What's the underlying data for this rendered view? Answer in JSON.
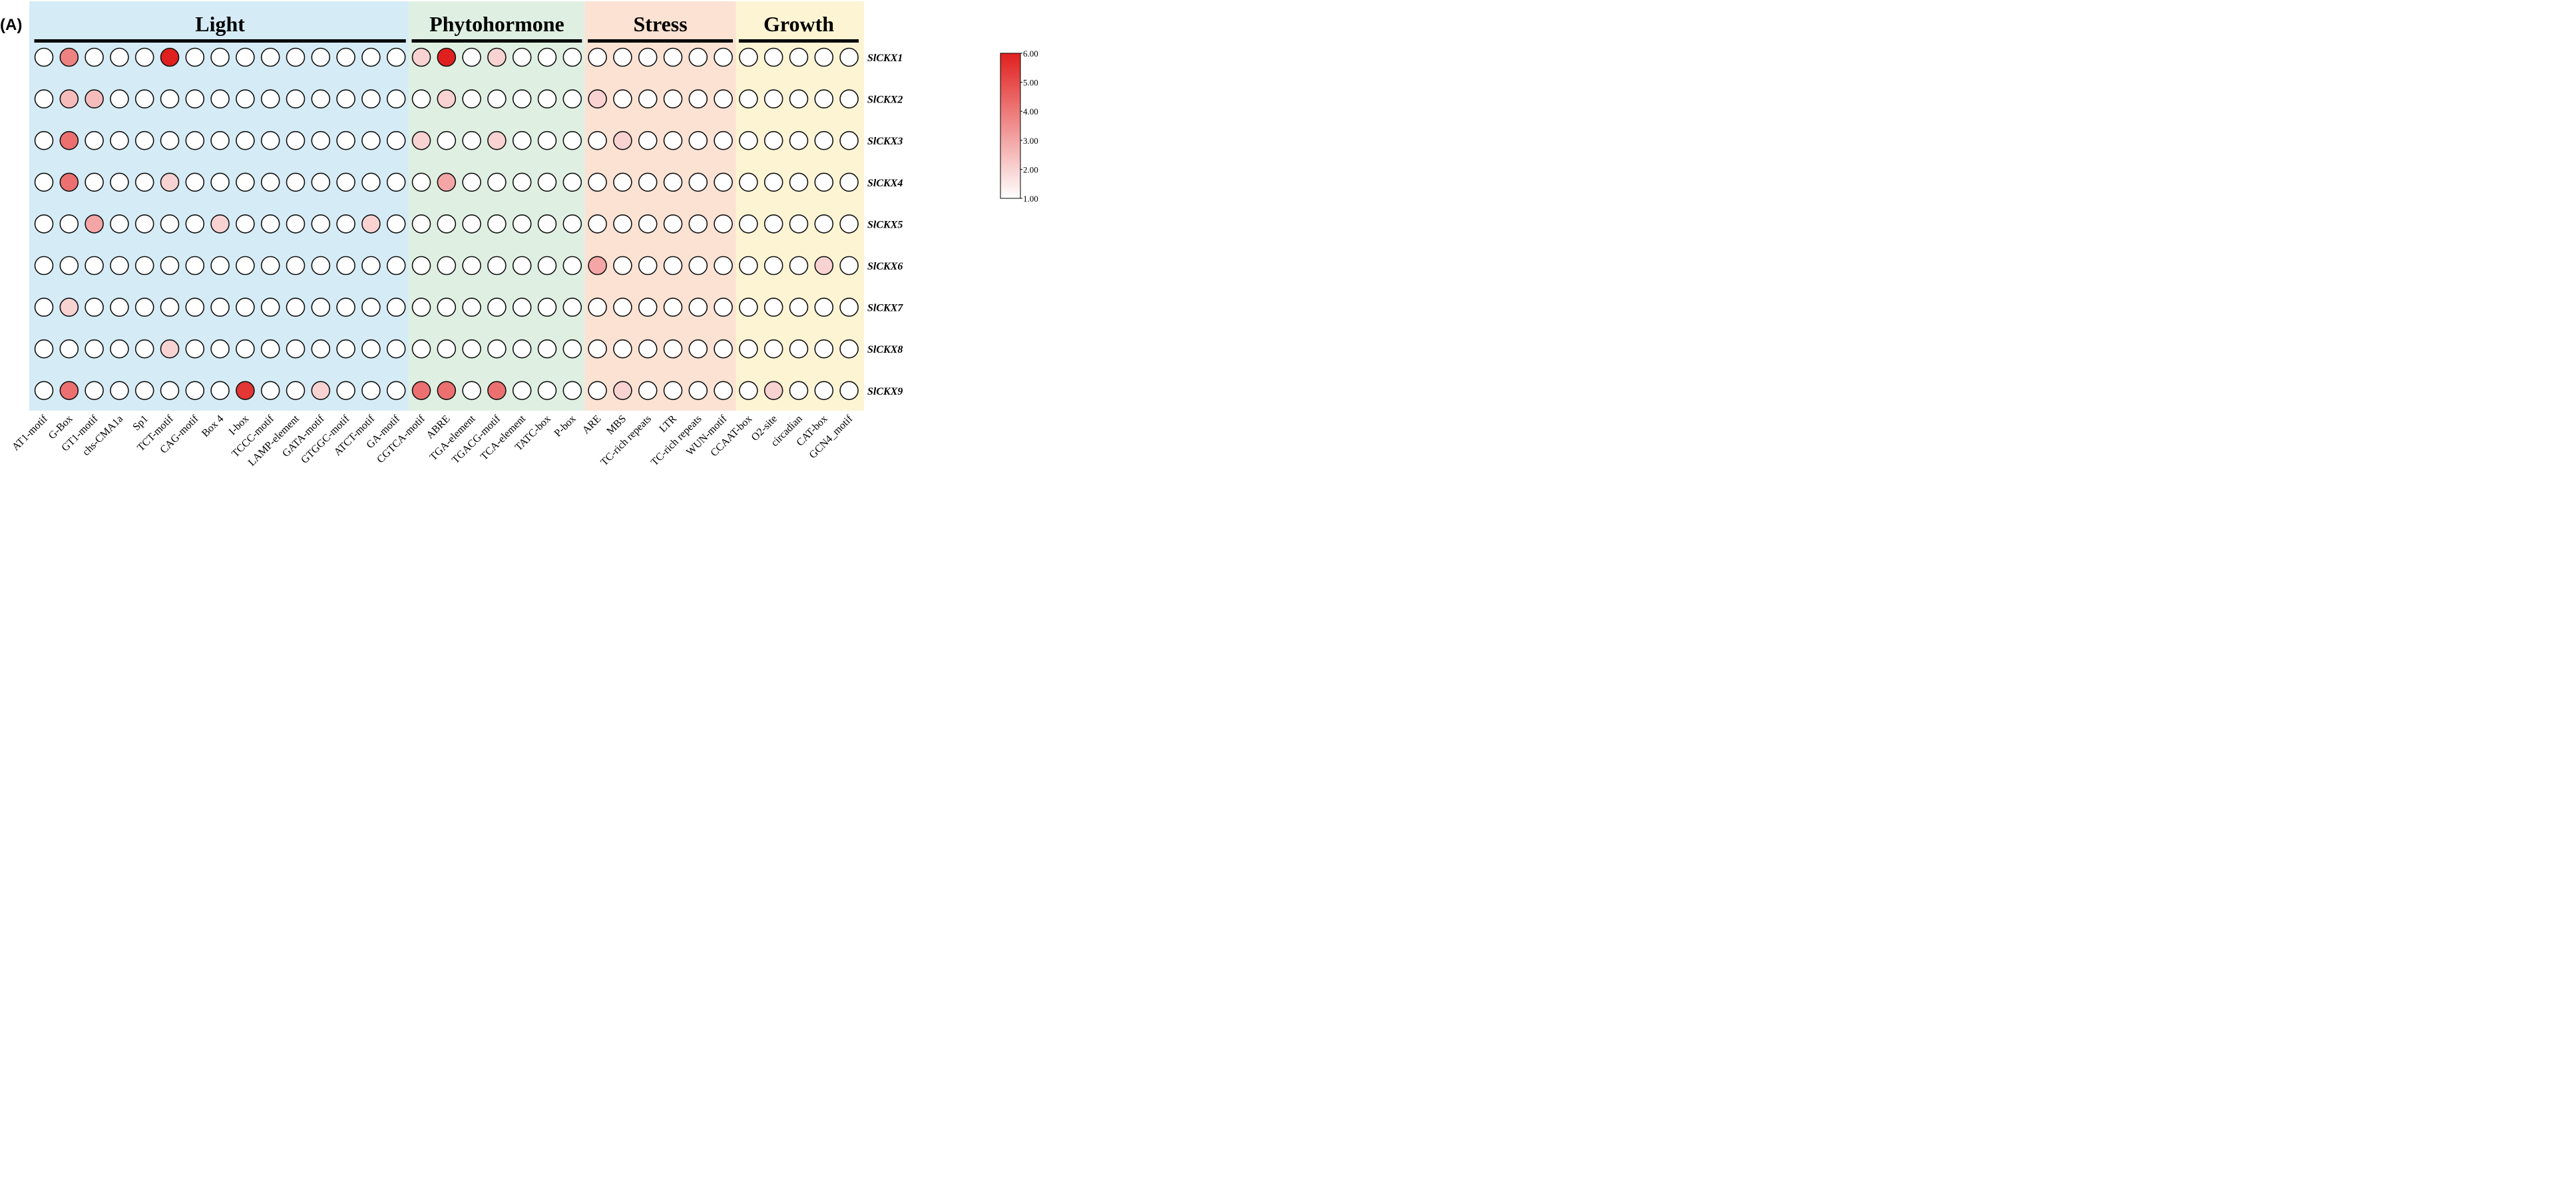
{
  "panel_label": "(A)",
  "chart_data": {
    "type": "heatmap",
    "title": "",
    "groups": [
      {
        "name": "Light",
        "start": 0,
        "end": 14,
        "color": "#d5ecf6"
      },
      {
        "name": "Phytohormone",
        "start": 15,
        "end": 21,
        "color": "#dff0e2"
      },
      {
        "name": "Stress",
        "start": 22,
        "end": 27,
        "color": "#fbe2d3"
      },
      {
        "name": "Growth",
        "start": 28,
        "end": 32,
        "color": "#fdf4d3"
      }
    ],
    "columns": [
      "AT1-motif",
      "G-Box",
      "GT1-motif",
      "chs-CMA1a",
      "Sp1",
      "TCT-motif",
      "CAG-motif",
      "Box 4",
      "I-box",
      "TCCC-motif",
      "LAMP-element",
      "GATA-motif",
      "GTGGC-motif",
      "ATCT-motif",
      "GA-motif",
      "CGTCA-motif",
      "ABRE",
      "TGA-element",
      "TGACG-motif",
      "TCA-element",
      "TATC-box",
      "P-box",
      "ARE",
      "MBS",
      "TC-rich repeats",
      "LTR",
      "TC-rich repeats",
      "WUN-motif",
      "CCAAT-box",
      "O2-site",
      "circadian",
      "CAT-box",
      "GCN4_motif"
    ],
    "rows": [
      "SlCKX1",
      "SlCKX2",
      "SlCKX3",
      "SlCKX4",
      "SlCKX5",
      "SlCKX6",
      "SlCKX7",
      "SlCKX8",
      "SlCKX9"
    ],
    "values": [
      [
        1,
        3.8,
        1,
        1,
        1,
        6,
        1,
        1,
        1,
        1,
        1,
        1,
        1,
        1,
        1,
        2,
        6,
        1,
        2,
        1,
        1,
        1,
        1,
        1,
        1,
        1,
        1,
        1,
        1,
        1,
        1,
        1,
        1
      ],
      [
        1,
        2.5,
        2.5,
        1,
        1,
        1,
        1,
        1,
        1,
        1,
        1,
        1,
        1,
        1,
        1,
        1,
        2,
        1,
        1,
        1,
        1,
        1,
        2,
        1,
        1,
        1,
        1,
        1,
        1,
        1,
        1,
        1,
        1
      ],
      [
        1,
        4.2,
        1,
        1,
        1,
        1,
        1,
        1,
        1,
        1,
        1,
        1,
        1,
        1,
        1,
        2,
        1,
        1,
        2,
        1,
        1,
        1,
        1,
        2,
        1,
        1,
        1,
        1,
        1,
        1,
        1,
        1,
        1
      ],
      [
        1,
        4.2,
        1,
        1,
        1,
        2,
        1,
        1,
        1,
        1,
        1,
        1,
        1,
        1,
        1,
        1,
        3,
        1,
        1,
        1,
        1,
        1,
        1,
        1,
        1,
        1,
        1,
        1,
        1,
        1,
        1,
        1,
        1
      ],
      [
        1,
        1,
        3,
        1,
        1,
        1,
        1,
        2,
        1,
        1,
        1,
        1,
        1,
        2,
        1,
        1,
        1,
        1,
        1,
        1,
        1,
        1,
        1,
        1,
        1,
        1,
        1,
        1,
        1,
        1,
        1,
        1,
        1
      ],
      [
        1,
        1,
        1,
        1,
        1,
        1,
        1,
        1,
        1,
        1,
        1,
        1,
        1,
        1,
        1,
        1,
        1,
        1,
        1,
        1,
        1,
        1,
        3,
        1,
        1,
        1,
        1,
        1,
        1,
        1,
        1,
        2,
        1
      ],
      [
        1,
        2,
        1,
        1,
        1,
        1,
        1,
        1,
        1,
        1,
        1,
        1,
        1,
        1,
        1,
        1,
        1,
        1,
        1,
        1,
        1,
        1,
        1,
        1,
        1,
        1,
        1,
        1,
        1,
        1,
        1,
        1,
        1
      ],
      [
        1,
        1,
        1,
        1,
        1,
        2,
        1,
        1,
        1,
        1,
        1,
        1,
        1,
        1,
        1,
        1,
        1,
        1,
        1,
        1,
        1,
        1,
        1,
        1,
        1,
        1,
        1,
        1,
        1,
        1,
        1,
        1,
        1
      ],
      [
        1,
        4.2,
        1,
        1,
        1,
        1,
        1,
        1,
        5.5,
        1,
        1,
        2,
        1,
        1,
        1,
        4.2,
        4.2,
        1,
        4.2,
        1,
        1,
        1,
        1,
        2,
        1,
        1,
        1,
        1,
        1,
        2,
        1,
        1,
        1
      ]
    ],
    "colorscale": {
      "min": 1,
      "max": 6,
      "low_color": "#ffffff",
      "high_color": "#e0201e",
      "ticks": [
        "6.00",
        "5.00",
        "4.00",
        "3.00",
        "2.00",
        "1.00"
      ]
    }
  }
}
